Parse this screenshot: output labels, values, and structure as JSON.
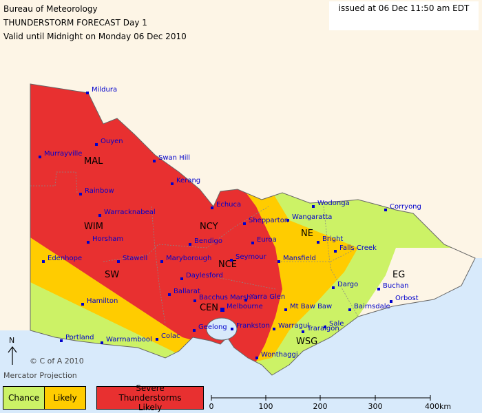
{
  "header": {
    "title": "Bureau of Meteorology",
    "subtitle": "THUNDERSTORM FORECAST Day 1",
    "valid": "Valid until Midnight on Monday 06 Dec 2010",
    "issued": "issued at 06 Dec 11:50 am EDT"
  },
  "regions": [
    "MAL",
    "WIM",
    "SW",
    "NCY",
    "NCE",
    "CEN",
    "NE",
    "EG",
    "WSG"
  ],
  "towns": [
    "Mildura",
    "Ouyen",
    "Murrayville",
    "Swan Hill",
    "Kerang",
    "Rainbow",
    "Echuca",
    "Warracknabeal",
    "Wodonga",
    "Corryong",
    "Wangaratta",
    "Shepparton",
    "Horsham",
    "Bendigo",
    "Euroa",
    "Bright",
    "Falls Creek",
    "Edenhope",
    "Stawell",
    "Maryborough",
    "Seymour",
    "Mansfield",
    "Daylesford",
    "Dargo",
    "Buchan",
    "Ballarat",
    "Bacchus Marsh",
    "Yarra Glen",
    "Melbourne",
    "Orbost",
    "Hamilton",
    "Mt Baw Baw",
    "Bairnsdale",
    "Sale",
    "Geelong",
    "Frankston",
    "Warragul",
    "Traralgon",
    "Colac",
    "Portland",
    "Warrnambool",
    "Wonthaggi"
  ],
  "north": "N",
  "copyright": "© C of A 2010",
  "projection": "Mercator Projection",
  "legend": [
    "Chance",
    "Likely",
    "Severe Thunderstorms Likely"
  ],
  "scale": [
    "0",
    "100",
    "200",
    "300",
    "400km"
  ]
}
